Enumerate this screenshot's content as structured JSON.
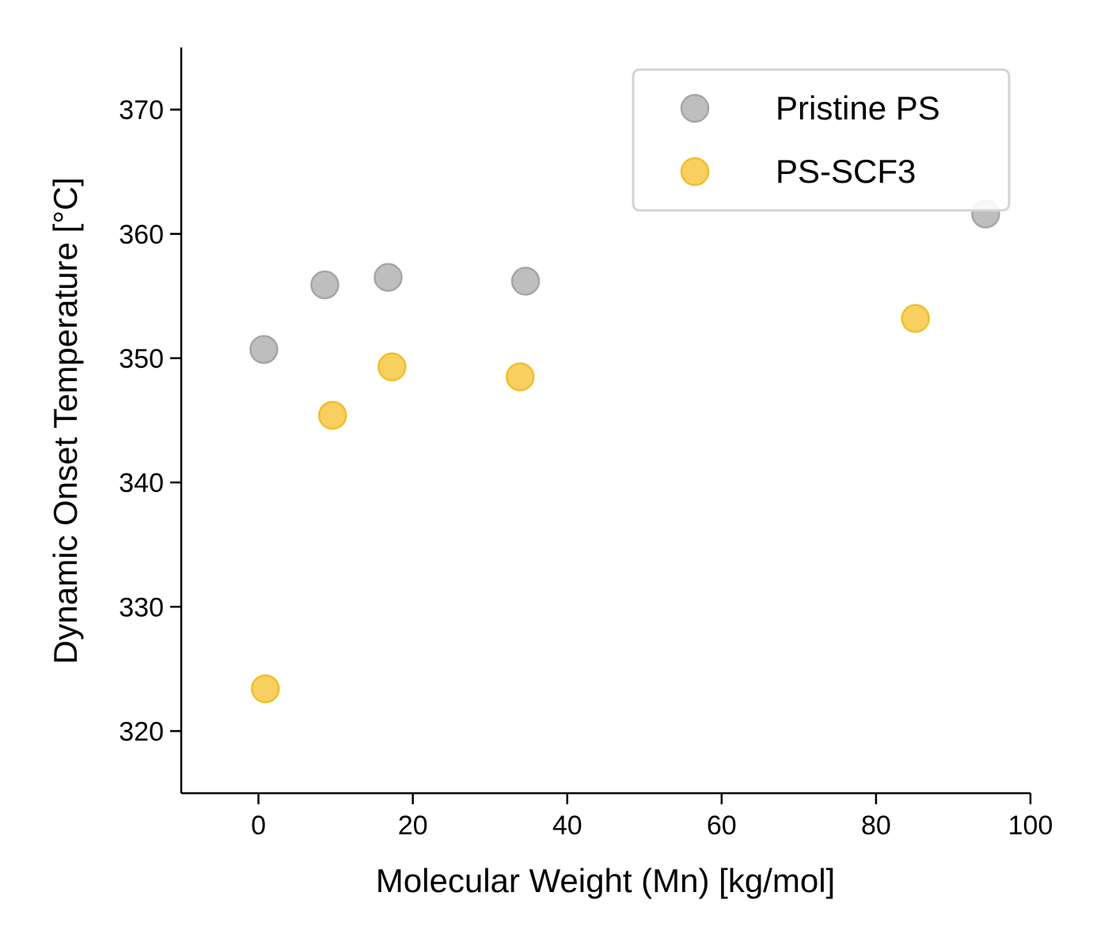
{
  "chart_data": {
    "type": "scatter",
    "xlabel": "Molecular Weight (Mn) [kg/mol]",
    "ylabel": "Dynamic Onset Temperature [°C]",
    "xlim": [
      -10,
      100
    ],
    "ylim": [
      315,
      375
    ],
    "xticks": [
      0,
      20,
      40,
      60,
      80,
      100
    ],
    "yticks": [
      320,
      330,
      340,
      350,
      360,
      370
    ],
    "grid": false,
    "legend_position": "top-right",
    "series": [
      {
        "name": "Pristine PS",
        "color": "#b3b3b3",
        "edge": "#a6a6a6",
        "points": [
          {
            "x": 0.7,
            "y": 350.7
          },
          {
            "x": 8.6,
            "y": 355.9
          },
          {
            "x": 16.8,
            "y": 356.5
          },
          {
            "x": 34.6,
            "y": 356.2
          },
          {
            "x": 94.2,
            "y": 361.6
          }
        ]
      },
      {
        "name": "PS-SCF3",
        "color": "#f7c844",
        "edge": "#f2be2a",
        "points": [
          {
            "x": 0.9,
            "y": 323.4
          },
          {
            "x": 9.6,
            "y": 345.4
          },
          {
            "x": 17.3,
            "y": 349.3
          },
          {
            "x": 33.9,
            "y": 348.5
          },
          {
            "x": 85.1,
            "y": 353.2
          }
        ]
      }
    ]
  }
}
